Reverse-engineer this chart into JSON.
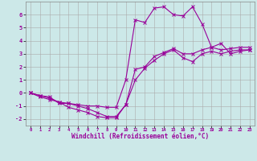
{
  "title": "",
  "xlabel": "Windchill (Refroidissement éolien,°C)",
  "bg_color": "#cce8e8",
  "line_color": "#990099",
  "grid_color": "#aaaaaa",
  "grid_color2": "#bbcccc",
  "x_ticks": [
    0,
    1,
    2,
    3,
    4,
    5,
    6,
    7,
    8,
    9,
    10,
    11,
    12,
    13,
    14,
    15,
    16,
    17,
    18,
    19,
    20,
    21,
    22,
    23
  ],
  "y_ticks": [
    -2,
    -1,
    0,
    1,
    2,
    3,
    4,
    5,
    6
  ],
  "ylim": [
    -2.5,
    7.0
  ],
  "xlim": [
    -0.5,
    23.5
  ],
  "line1_x": [
    0,
    1,
    2,
    3,
    4,
    5,
    6,
    7,
    8,
    9,
    10,
    11,
    12,
    13,
    14,
    15,
    16,
    17,
    18,
    19,
    20,
    21,
    22,
    23
  ],
  "line1_y": [
    0.0,
    -0.3,
    -0.5,
    -0.7,
    -1.1,
    -1.3,
    -1.5,
    -1.8,
    -1.9,
    -1.9,
    -0.9,
    1.0,
    1.9,
    2.5,
    3.0,
    3.3,
    2.7,
    2.4,
    3.0,
    3.2,
    3.0,
    3.2,
    3.3,
    3.3
  ],
  "line2_x": [
    0,
    1,
    2,
    3,
    4,
    5,
    6,
    7,
    8,
    9,
    10,
    11,
    12,
    13,
    14,
    15,
    16,
    17,
    18,
    19,
    20,
    21,
    22,
    23
  ],
  "line2_y": [
    0.0,
    -0.2,
    -0.4,
    -0.7,
    -0.8,
    -0.9,
    -1.0,
    -1.0,
    -1.1,
    -1.1,
    1.0,
    5.6,
    5.4,
    6.5,
    6.6,
    6.0,
    5.9,
    6.6,
    5.3,
    3.5,
    3.8,
    3.0,
    3.2,
    3.3
  ],
  "line3_x": [
    0,
    1,
    2,
    3,
    4,
    5,
    6,
    7,
    8,
    9,
    10,
    11,
    12,
    13,
    14,
    15,
    16,
    17,
    18,
    19,
    20,
    21,
    22,
    23
  ],
  "line3_y": [
    0.0,
    -0.2,
    -0.3,
    -0.8,
    -0.8,
    -1.0,
    -1.2,
    -1.5,
    -1.8,
    -1.8,
    -0.9,
    1.8,
    2.0,
    2.8,
    3.1,
    3.4,
    3.0,
    3.0,
    3.3,
    3.5,
    3.3,
    3.4,
    3.5,
    3.5
  ],
  "lw": 0.8,
  "markersize": 2.5,
  "xlabel_fontsize": 5.5,
  "xtick_fontsize": 4.0,
  "ytick_fontsize": 5.0
}
